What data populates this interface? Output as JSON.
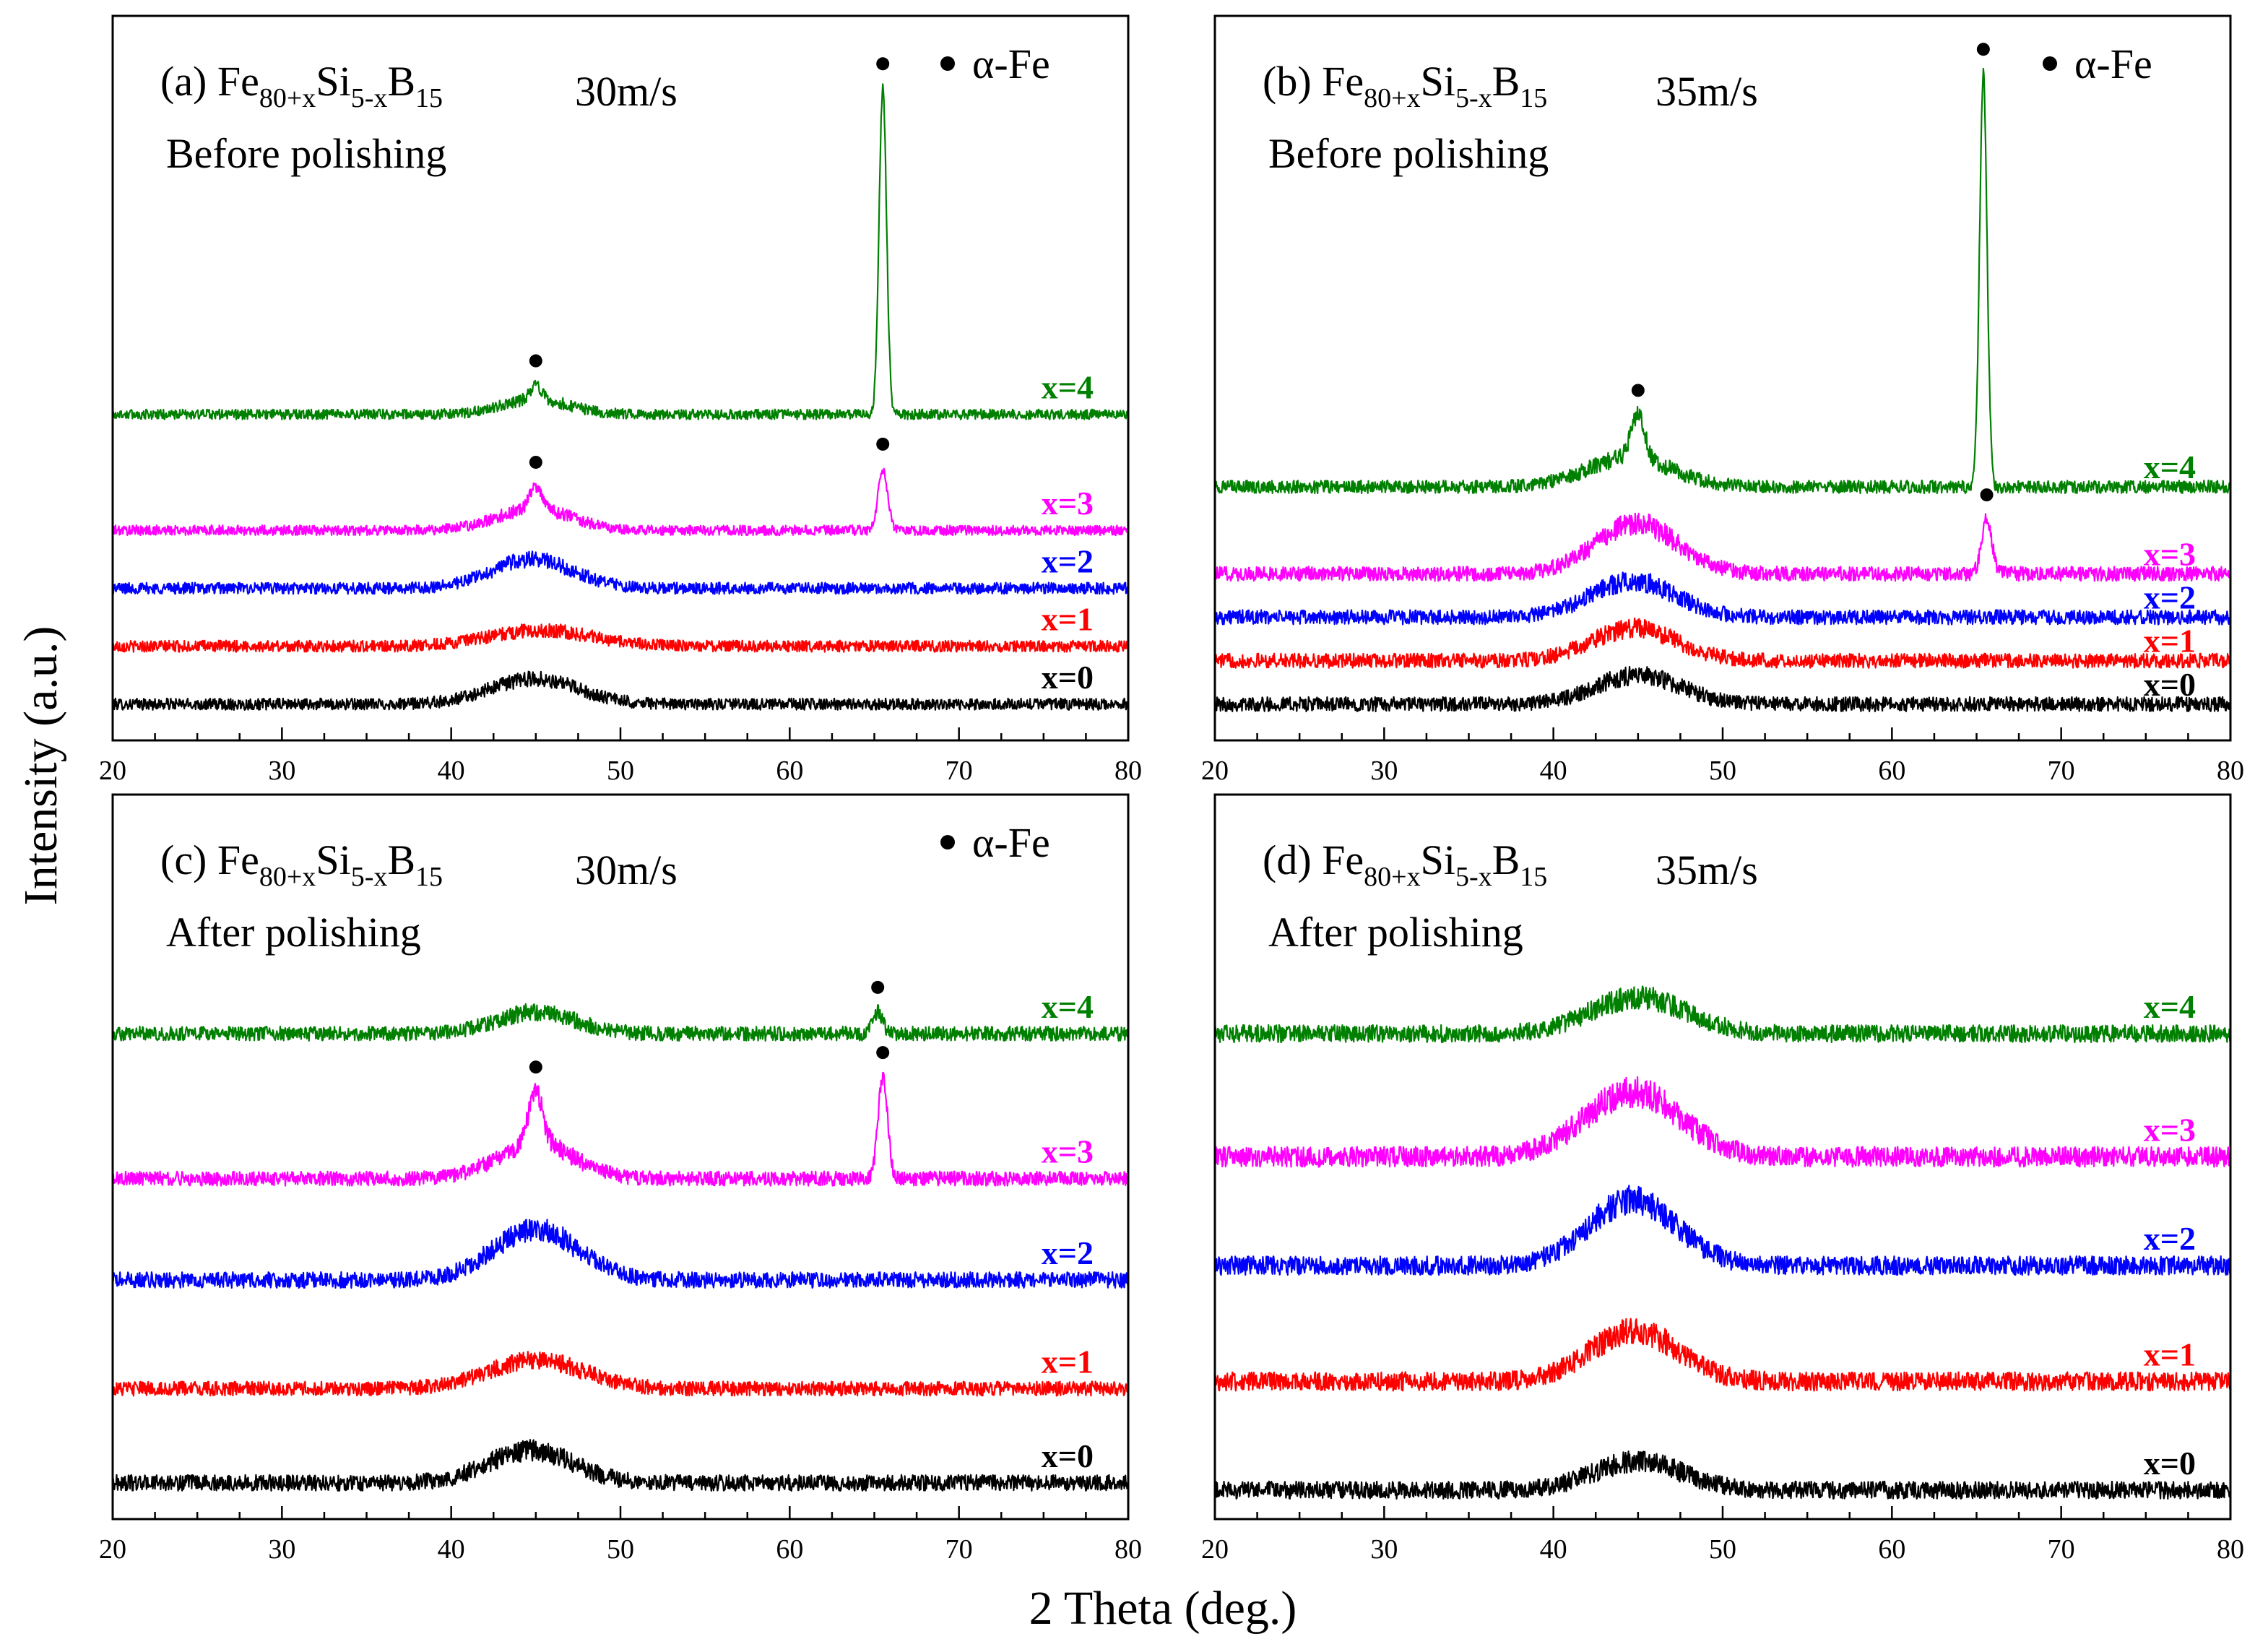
{
  "figure": {
    "ylabel": "Intensity (a.u.)",
    "xlabel": "2 Theta (deg.)",
    "colors": {
      "x=0": "#000000",
      "x=1": "#ff0000",
      "x=2": "#0000ff",
      "x=3": "#ff00ff",
      "x=4": "#008000"
    }
  },
  "chart_data": [
    {
      "type": "line",
      "panel": "a",
      "label": "(a)",
      "formula": {
        "base1": "Fe",
        "sub1": "80+x",
        "base2": "Si",
        "sub2": "5-x",
        "base3": "B",
        "sub3": "15"
      },
      "speed": "30m/s",
      "condition": "Before polishing",
      "legend": "α-Fe",
      "xlim": [
        20,
        80
      ],
      "xticks": [
        20,
        30,
        40,
        50,
        60,
        70,
        80
      ],
      "ylim": [
        0,
        100
      ],
      "series": [
        {
          "name": "x=0",
          "baseline": 5,
          "peaks": [
            {
              "pos": 44.9,
              "h": 3.5,
              "w": 2.6
            }
          ],
          "noise": 0.8,
          "markers": []
        },
        {
          "name": "x=1",
          "baseline": 13,
          "peaks": [
            {
              "pos": 45.3,
              "h": 2.2,
              "w": 3.0
            }
          ],
          "noise": 0.8,
          "markers": []
        },
        {
          "name": "x=2",
          "baseline": 21,
          "peaks": [
            {
              "pos": 44.8,
              "h": 4.0,
              "w": 2.4
            }
          ],
          "noise": 0.8,
          "markers": []
        },
        {
          "name": "x=3",
          "baseline": 29,
          "peaks": [
            {
              "pos": 44.9,
              "h": 3.0,
              "w": 2.2
            },
            {
              "pos": 45.0,
              "h": 3.0,
              "w": 0.35
            },
            {
              "pos": 65.5,
              "h": 8.5,
              "w": 0.28
            }
          ],
          "noise": 0.7,
          "markers": [
            45.0,
            65.5
          ]
        },
        {
          "name": "x=4",
          "baseline": 45,
          "peaks": [
            {
              "pos": 45.0,
              "h": 2.0,
              "w": 2.0
            },
            {
              "pos": 45.0,
              "h": 2.0,
              "w": 0.35
            },
            {
              "pos": 65.5,
              "h": 45.0,
              "w": 0.22
            }
          ],
          "noise": 0.7,
          "markers": [
            45.0,
            65.5
          ]
        }
      ]
    },
    {
      "type": "line",
      "panel": "b",
      "label": "(b)",
      "formula": {
        "base1": "Fe",
        "sub1": "80+x",
        "base2": "Si",
        "sub2": "5-x",
        "base3": "B",
        "sub3": "15"
      },
      "speed": "35m/s",
      "condition": "Before polishing",
      "legend": "α-Fe",
      "xlim": [
        20,
        80
      ],
      "xticks": [
        20,
        30,
        40,
        50,
        60,
        70,
        80
      ],
      "ylim": [
        0,
        100
      ],
      "series": [
        {
          "name": "x=0",
          "baseline": 5,
          "peaks": [
            {
              "pos": 45.0,
              "h": 4.0,
              "w": 2.5
            }
          ],
          "noise": 1.0,
          "markers": []
        },
        {
          "name": "x=1",
          "baseline": 11,
          "peaks": [
            {
              "pos": 44.8,
              "h": 4.5,
              "w": 2.5
            }
          ],
          "noise": 1.0,
          "markers": []
        },
        {
          "name": "x=2",
          "baseline": 17,
          "peaks": [
            {
              "pos": 44.7,
              "h": 5.0,
              "w": 2.5
            }
          ],
          "noise": 1.0,
          "markers": []
        },
        {
          "name": "x=3",
          "baseline": 23,
          "peaks": [
            {
              "pos": 44.9,
              "h": 7.0,
              "w": 2.4
            },
            {
              "pos": 65.6,
              "h": 7.5,
              "w": 0.3
            }
          ],
          "noise": 1.0,
          "markers": [
            65.6
          ]
        },
        {
          "name": "x=4",
          "baseline": 35,
          "peaks": [
            {
              "pos": 44.5,
              "h": 4.0,
              "w": 2.5
            },
            {
              "pos": 45.0,
              "h": 6.0,
              "w": 0.4
            },
            {
              "pos": 65.4,
              "h": 57.0,
              "w": 0.22
            }
          ],
          "noise": 0.9,
          "markers": [
            45.0,
            65.4
          ]
        }
      ]
    },
    {
      "type": "line",
      "panel": "c",
      "label": "(c)",
      "formula": {
        "base1": "Fe",
        "sub1": "80+x",
        "base2": "Si",
        "sub2": "5-x",
        "base3": "B",
        "sub3": "15"
      },
      "speed": "30m/s",
      "condition": "After polishing",
      "legend": "α-Fe",
      "xlim": [
        20,
        80
      ],
      "xticks": [
        20,
        30,
        40,
        50,
        60,
        70,
        80
      ],
      "ylim": [
        0,
        100
      ],
      "series": [
        {
          "name": "x=0",
          "baseline": 5,
          "peaks": [
            {
              "pos": 44.7,
              "h": 4.5,
              "w": 2.5
            }
          ],
          "noise": 1.1,
          "markers": []
        },
        {
          "name": "x=1",
          "baseline": 18,
          "peaks": [
            {
              "pos": 45.0,
              "h": 4.0,
              "w": 2.8
            }
          ],
          "noise": 1.0,
          "markers": []
        },
        {
          "name": "x=2",
          "baseline": 33,
          "peaks": [
            {
              "pos": 45.0,
              "h": 7.0,
              "w": 2.5
            }
          ],
          "noise": 1.1,
          "markers": []
        },
        {
          "name": "x=3",
          "baseline": 47,
          "peaks": [
            {
              "pos": 45.0,
              "h": 5.0,
              "w": 2.2
            },
            {
              "pos": 45.0,
              "h": 7.0,
              "w": 0.4
            },
            {
              "pos": 65.5,
              "h": 14.0,
              "w": 0.28
            }
          ],
          "noise": 1.0,
          "markers": [
            45.0,
            65.5
          ]
        },
        {
          "name": "x=4",
          "baseline": 67,
          "peaks": [
            {
              "pos": 45.0,
              "h": 3.0,
              "w": 2.3
            },
            {
              "pos": 65.2,
              "h": 3.0,
              "w": 0.3
            }
          ],
          "noise": 1.0,
          "markers": [
            65.2
          ]
        }
      ]
    },
    {
      "type": "line",
      "panel": "d",
      "label": "(d)",
      "formula": {
        "base1": "Fe",
        "sub1": "80+x",
        "base2": "Si",
        "sub2": "5-x",
        "base3": "B",
        "sub3": "15"
      },
      "speed": "35m/s",
      "condition": "After polishing",
      "legend": "",
      "xlim": [
        20,
        80
      ],
      "xticks": [
        20,
        30,
        40,
        50,
        60,
        70,
        80
      ],
      "ylim": [
        0,
        100
      ],
      "series": [
        {
          "name": "x=0",
          "baseline": 4,
          "peaks": [
            {
              "pos": 45.0,
              "h": 4.0,
              "w": 2.6
            }
          ],
          "noise": 1.2,
          "markers": []
        },
        {
          "name": "x=1",
          "baseline": 19,
          "peaks": [
            {
              "pos": 44.8,
              "h": 7.0,
              "w": 2.6
            }
          ],
          "noise": 1.3,
          "markers": []
        },
        {
          "name": "x=2",
          "baseline": 35,
          "peaks": [
            {
              "pos": 44.7,
              "h": 9.0,
              "w": 2.6
            }
          ],
          "noise": 1.3,
          "markers": []
        },
        {
          "name": "x=3",
          "baseline": 50,
          "peaks": [
            {
              "pos": 44.7,
              "h": 9.0,
              "w": 2.8
            }
          ],
          "noise": 1.4,
          "markers": []
        },
        {
          "name": "x=4",
          "baseline": 67,
          "peaks": [
            {
              "pos": 45.0,
              "h": 5.0,
              "w": 2.8
            }
          ],
          "noise": 1.2,
          "markers": []
        }
      ]
    }
  ]
}
